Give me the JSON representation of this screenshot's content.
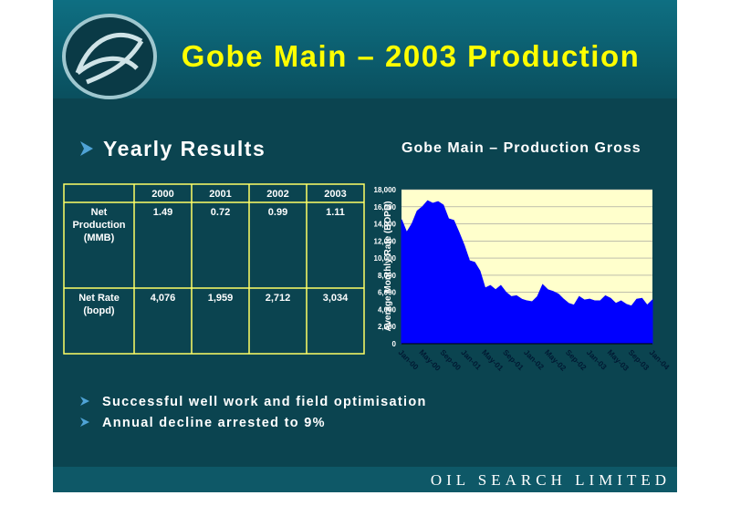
{
  "title": "Gobe Main – 2003 Production",
  "section": "Yearly Results",
  "table": {
    "header": [
      "2000",
      "2001",
      "2002",
      "2003"
    ],
    "rows": [
      {
        "label": "Net Production (MMB)",
        "cells": [
          "1.49",
          "0.72",
          "0.99",
          "1.11"
        ]
      },
      {
        "label": "Net Rate (bopd)",
        "cells": [
          "4,076",
          "1,959",
          "2,712",
          "3,034"
        ]
      }
    ]
  },
  "bullets": [
    "Successful well work and field optimisation",
    "Annual decline arrested to 9%"
  ],
  "footer": "OIL SEARCH LIMITED",
  "chart_data": {
    "type": "area",
    "title": "Gobe Main – Production Gross",
    "y_label": "Average Monthly Rate (BOPD)",
    "categories": [
      "Jan-00",
      null,
      null,
      null,
      "May-00",
      null,
      null,
      null,
      "Sep-00",
      null,
      null,
      null,
      "Jan-01",
      null,
      null,
      null,
      "May-01",
      null,
      null,
      null,
      "Sep-01",
      null,
      null,
      null,
      "Jan-02",
      null,
      null,
      null,
      "May-02",
      null,
      null,
      null,
      "Sep-02",
      null,
      null,
      null,
      "Jan-03",
      null,
      null,
      null,
      "May-03",
      null,
      null,
      null,
      "Sep-03",
      null,
      null,
      null,
      "Jan-04"
    ],
    "values": [
      14500,
      13000,
      14000,
      15500,
      16000,
      16700,
      16400,
      16600,
      16200,
      14600,
      14400,
      13000,
      11500,
      9700,
      9500,
      8500,
      6500,
      6800,
      6300,
      6800,
      6000,
      5500,
      5600,
      5200,
      5000,
      4900,
      5500,
      6900,
      6300,
      6100,
      5800,
      5200,
      4700,
      4500,
      5500,
      5100,
      5200,
      5000,
      5000,
      5600,
      5300,
      4700,
      5000,
      4600,
      4400,
      5200,
      5300,
      4500,
      5100
    ],
    "color": "#0000ff",
    "ylim": [
      0,
      18000
    ],
    "yticks": [
      0,
      {
        "value": 2000,
        "label": "2,000"
      },
      {
        "value": 4000,
        "label": "4,000"
      },
      {
        "value": 6000,
        "label": "6,000"
      },
      {
        "value": 8000,
        "label": "8,000"
      },
      {
        "value": 10000,
        "label": "10,000"
      },
      {
        "value": 12000,
        "label": "12,000"
      },
      {
        "value": 14000,
        "label": "14,000"
      },
      {
        "value": 16000,
        "label": "16,000"
      },
      {
        "value": 18000,
        "label": "18,000"
      }
    ],
    "grid": true
  }
}
